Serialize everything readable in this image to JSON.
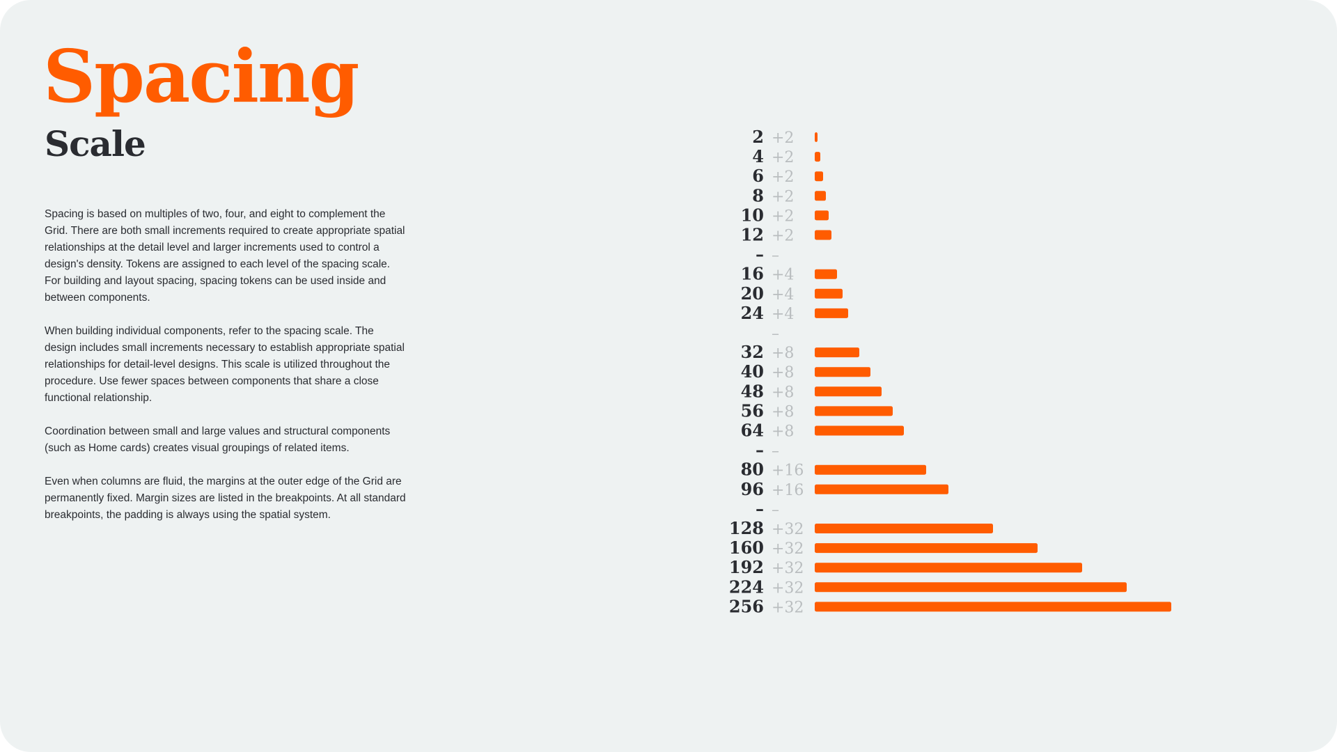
{
  "title": "Spacing",
  "subtitle": "Scale",
  "paragraphs": [
    "Spacing is based on multiples of two, four, and eight to complement the Grid. There are both small increments required to create appropriate spatial relationships at the detail level and larger increments used to control a design's density. Tokens are assigned to each level of the spacing scale. For building and layout spacing, spacing tokens can be used inside and between components.",
    "When building individual components, refer to the spacing scale. The design includes small increments necessary to establish appropriate spatial relationships for detail-level designs. This scale is utilized throughout the procedure. Use fewer spaces between components that share a close functional relationship.",
    "Coordination between small and large values and structural components (such as Home cards) creates visual groupings of related items.",
    "Even when columns are fluid, the margins at the outer edge of the Grid are permanently fixed. Margin sizes are listed in the breakpoints. At all standard breakpoints, the padding is always using the spatial system."
  ],
  "colors": {
    "accent": "#ff5c00",
    "text": "#2a2c31",
    "muted": "#b9bdbf",
    "background": "#eef2f2"
  },
  "chart_data": {
    "type": "bar",
    "orientation": "horizontal",
    "grid": false,
    "rows": [
      {
        "value": 2,
        "increment": "+2"
      },
      {
        "value": 4,
        "increment": "+2"
      },
      {
        "value": 6,
        "increment": "+2"
      },
      {
        "value": 8,
        "increment": "+2"
      },
      {
        "value": 10,
        "increment": "+2"
      },
      {
        "value": 12,
        "increment": "+2"
      },
      {
        "separator": true,
        "label": "–",
        "increment": "–"
      },
      {
        "value": 16,
        "increment": "+4"
      },
      {
        "value": 20,
        "increment": "+4"
      },
      {
        "value": 24,
        "increment": "+4"
      },
      {
        "separator": true,
        "label": "",
        "increment": "–"
      },
      {
        "value": 32,
        "increment": "+8"
      },
      {
        "value": 40,
        "increment": "+8"
      },
      {
        "value": 48,
        "increment": "+8"
      },
      {
        "value": 56,
        "increment": "+8"
      },
      {
        "value": 64,
        "increment": "+8"
      },
      {
        "separator": true,
        "label": "–",
        "increment": "–"
      },
      {
        "value": 80,
        "increment": "+16"
      },
      {
        "value": 96,
        "increment": "+16"
      },
      {
        "separator": true,
        "label": "–",
        "increment": "–"
      },
      {
        "value": 128,
        "increment": "+32"
      },
      {
        "value": 160,
        "increment": "+32"
      },
      {
        "value": 192,
        "increment": "+32"
      },
      {
        "value": 224,
        "increment": "+32"
      },
      {
        "value": 256,
        "increment": "+32"
      }
    ]
  }
}
